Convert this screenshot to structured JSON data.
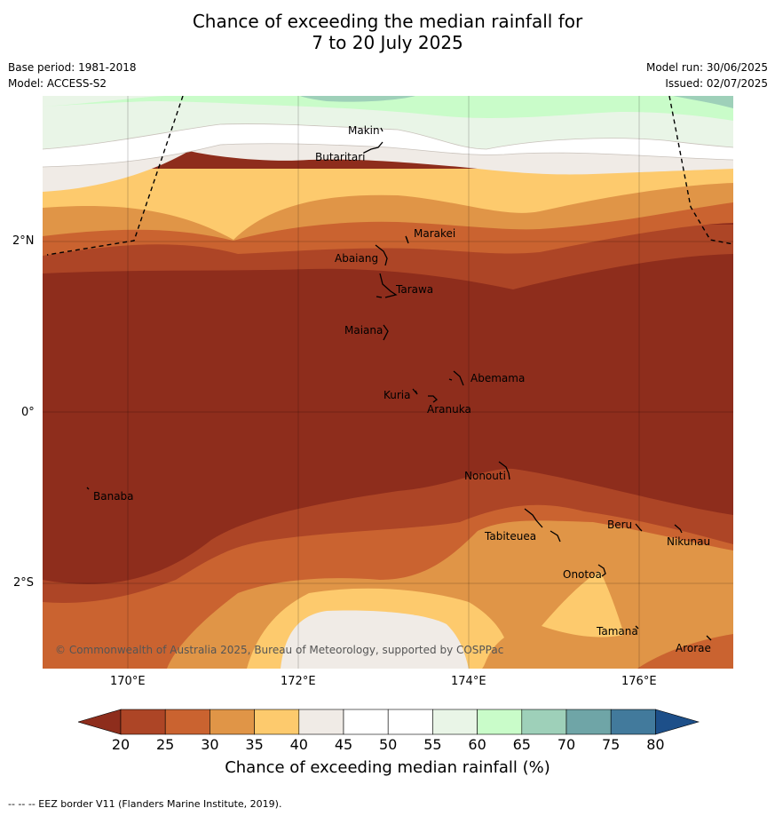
{
  "title": {
    "line1": "Chance of exceeding the median rainfall for",
    "line2": "7 to 20 July 2025"
  },
  "meta": {
    "base_period": "Base period: 1981-2018",
    "model": "Model: ACCESS-S2",
    "model_run": "Model run: 30/06/2025",
    "issued": "Issued: 02/07/2025"
  },
  "map": {
    "x_ticks": [
      "170°E",
      "172°E",
      "174°E",
      "176°E"
    ],
    "y_ticks": [
      "2°N",
      "0°",
      "2°S"
    ],
    "copyright": "© Commonwealth of Australia 2025, Bureau of Meteorology, supported by COSPPac",
    "places": {
      "makin": "Makin",
      "butaritari": "Butaritari",
      "marakei": "Marakei",
      "abaiang": "Abaiang",
      "tarawa": "Tarawa",
      "maiana": "Maiana",
      "abemama": "Abemama",
      "kuria": "Kuria",
      "aranuka": "Aranuka",
      "nonouti": "Nonouti",
      "banaba": "Banaba",
      "beru": "Beru",
      "tabiteuea": "Tabiteuea",
      "nikunau": "Nikunau",
      "onotoa": "Onotoa",
      "tamana": "Tamana",
      "arorae": "Arorae"
    }
  },
  "colorbar": {
    "label": "Chance of exceeding median rainfall (%)",
    "ticks": [
      "20",
      "25",
      "30",
      "35",
      "40",
      "45",
      "50",
      "55",
      "60",
      "65",
      "70",
      "75",
      "80"
    ],
    "colors": {
      "below_20": "#8e2d1c",
      "20_25": "#ad4526",
      "25_30": "#ca6330",
      "30_35": "#e09547",
      "35_40": "#fdca6d",
      "40_45": "#f0ebe6",
      "45_50": "#ffffff",
      "50_55": "#ffffff",
      "55_60": "#e9f5e7",
      "60_65": "#c9fcc9",
      "65_70": "#9ed0b9",
      "70_75": "#6fa5a7",
      "75_80": "#427a9c",
      "above_80": "#1d4f89"
    }
  },
  "footer": {
    "eez_note": "--  --  -- EEZ border V11 (Flanders Marine Institute, 2019)."
  }
}
